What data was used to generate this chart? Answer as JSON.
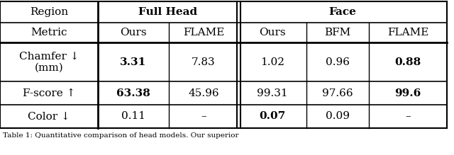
{
  "col_headers_row1": [
    "Region",
    "Full Head",
    "Face"
  ],
  "col_headers_row2": [
    "Metric",
    "Ours",
    "FLAME",
    "Ours",
    "BFM",
    "FLAME"
  ],
  "rows": [
    {
      "label": "Chamfer ↓\n(mm)",
      "values": [
        "3.31",
        "7.83",
        "1.02",
        "0.96",
        "0.88"
      ],
      "bold": [
        true,
        false,
        false,
        false,
        true
      ]
    },
    {
      "label": "F-score ↑",
      "values": [
        "63.38",
        "45.96",
        "99.31",
        "97.66",
        "99.6"
      ],
      "bold": [
        true,
        false,
        false,
        false,
        true
      ]
    },
    {
      "label": "Color ↓",
      "values": [
        "0.11",
        "–",
        "0.07",
        "0.09",
        "–"
      ],
      "bold": [
        false,
        false,
        true,
        false,
        false
      ]
    }
  ],
  "caption": "Table 1: Quantitative comparison of head models. Our superior",
  "background_color": "#ffffff",
  "text_color": "#000000"
}
